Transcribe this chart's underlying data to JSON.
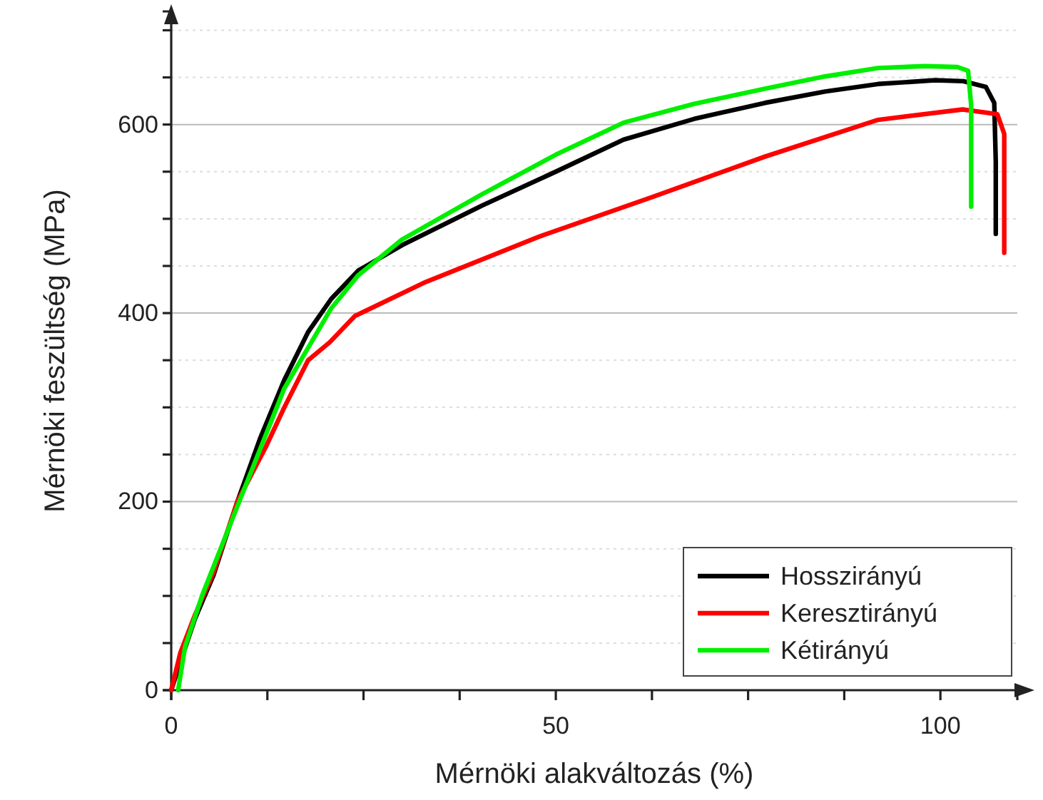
{
  "chart_data": {
    "type": "line",
    "xlabel": "Mérnöki alakváltozás (%)",
    "ylabel": "Mérnöki feszültség (MPa)",
    "xlim": [
      0,
      110
    ],
    "ylim": [
      0,
      720
    ],
    "xticks": [
      0,
      {
        "value": 12.5,
        "label": null
      },
      {
        "value": 25,
        "label": null
      },
      {
        "value": 37.5,
        "label": null
      },
      50,
      {
        "value": 62.5,
        "label": null
      },
      {
        "value": 75,
        "label": null
      },
      {
        "value": 87.5,
        "label": null
      },
      100
    ],
    "yticks": [
      0,
      {
        "value": 50,
        "label": null
      },
      {
        "value": 100,
        "label": null
      },
      {
        "value": 150,
        "label": null
      },
      200,
      {
        "value": 250,
        "label": null
      },
      {
        "value": 300,
        "label": null
      },
      {
        "value": 350,
        "label": null
      },
      400,
      {
        "value": 450,
        "label": null
      },
      {
        "value": 500,
        "label": null
      },
      {
        "value": 550,
        "label": null
      },
      600,
      {
        "value": 650,
        "label": null
      },
      {
        "value": 700,
        "label": null
      }
    ],
    "grid": "y",
    "legend": "bottom right",
    "line_style": "solid",
    "marker": "none",
    "series": [
      {
        "name": "Hosszirányú",
        "color": "#000000",
        "x": [
          0,
          1.2,
          3.1,
          5.5,
          8.6,
          11.6,
          14.7,
          17.8,
          20.8,
          24.3,
          30,
          40.4,
          50,
          58.8,
          68,
          77.2,
          85,
          91.9,
          99.3,
          103,
          105.9,
          107,
          107.2,
          107.2
        ],
        "values": [
          0,
          30,
          76,
          122,
          200,
          268,
          329,
          380,
          415,
          445,
          472,
          514,
          550,
          584,
          606,
          623,
          635,
          643,
          647,
          646,
          640,
          623,
          560,
          484
        ]
      },
      {
        "name": "Keresztirányú",
        "color": "#ff0000",
        "x": [
          0,
          1.2,
          3.1,
          5.5,
          8.6,
          12.3,
          14.7,
          17.8,
          20.6,
          23.9,
          33.1,
          47.8,
          62.5,
          77.2,
          91.9,
          102.9,
          107.4,
          108.3,
          108.3
        ],
        "values": [
          0,
          40,
          80,
          125,
          200,
          258,
          300,
          350,
          369,
          397,
          433,
          481,
          523,
          566,
          605,
          616,
          611,
          590,
          464
        ]
      },
      {
        "name": "Kétirányú",
        "color": "#00ee00",
        "x": [
          0.9,
          1.8,
          4,
          8.6,
          14.7,
          20.8,
          24.3,
          30,
          40.4,
          50,
          58.8,
          68,
          77.2,
          85,
          91.9,
          98,
          102.2,
          103.6,
          104,
          104
        ],
        "values": [
          0,
          46,
          100,
          195,
          320,
          405,
          440,
          478,
          526,
          568,
          602,
          622,
          638,
          651,
          660,
          662,
          661,
          657,
          620,
          513
        ]
      }
    ]
  }
}
